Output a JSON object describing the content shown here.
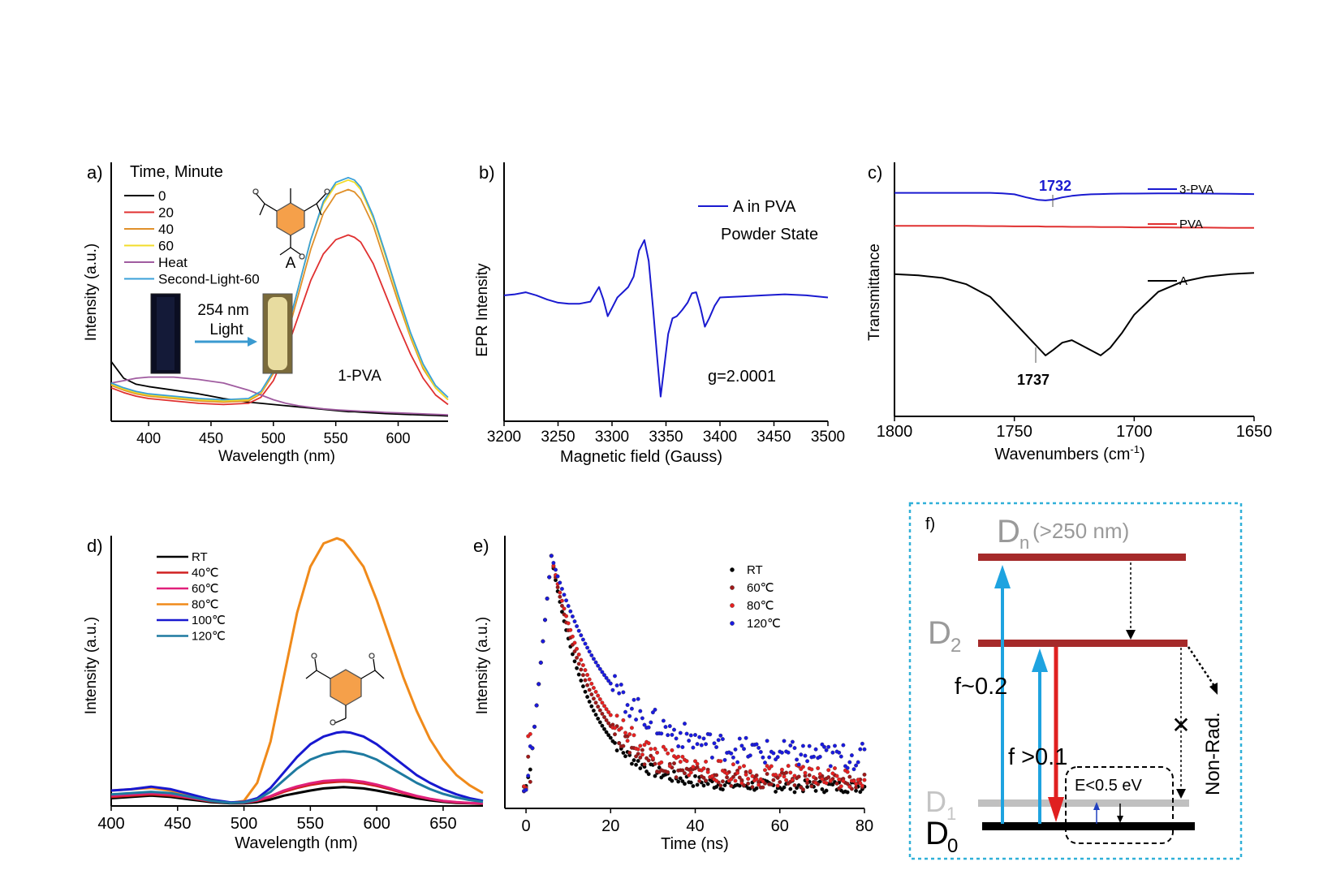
{
  "chart_data": [
    {
      "panel": "a)",
      "type": "line",
      "xlabel": "Wavelength (nm)",
      "ylabel": "Intensity (a.u.)",
      "xlim": [
        370,
        640
      ],
      "ylim": [
        0,
        1.05
      ],
      "xticks": [
        400,
        450,
        500,
        550,
        600
      ],
      "legend_title": "Time, Minute",
      "legend_position": "top-left",
      "annotations": [
        "A",
        "254 nm",
        "Light",
        "1-PVA"
      ],
      "x": [
        370,
        380,
        390,
        400,
        420,
        440,
        460,
        480,
        490,
        500,
        510,
        520,
        530,
        540,
        550,
        560,
        565,
        570,
        580,
        590,
        600,
        610,
        620,
        630,
        640
      ],
      "series": [
        {
          "name": "0",
          "color": "#000000",
          "values": [
            0.25,
            0.18,
            0.155,
            0.145,
            0.13,
            0.115,
            0.095,
            0.08,
            0.075,
            0.07,
            0.065,
            0.06,
            0.055,
            0.05,
            0.045,
            0.04,
            0.04,
            0.038,
            0.035,
            0.032,
            0.03,
            0.028,
            0.026,
            0.024,
            0.022
          ]
        },
        {
          "name": "20",
          "color": "#e03030",
          "values": [
            0.14,
            0.12,
            0.105,
            0.095,
            0.085,
            0.075,
            0.07,
            0.075,
            0.1,
            0.17,
            0.29,
            0.44,
            0.59,
            0.7,
            0.76,
            0.78,
            0.77,
            0.75,
            0.66,
            0.53,
            0.4,
            0.28,
            0.18,
            0.11,
            0.07
          ]
        },
        {
          "name": "40",
          "color": "#e0902a",
          "values": [
            0.15,
            0.13,
            0.115,
            0.105,
            0.095,
            0.085,
            0.08,
            0.085,
            0.115,
            0.2,
            0.34,
            0.53,
            0.72,
            0.87,
            0.95,
            0.97,
            0.96,
            0.93,
            0.82,
            0.66,
            0.5,
            0.35,
            0.22,
            0.14,
            0.09
          ]
        },
        {
          "name": "60",
          "color": "#f2dc2a",
          "values": [
            0.155,
            0.135,
            0.12,
            0.11,
            0.1,
            0.09,
            0.085,
            0.09,
            0.12,
            0.21,
            0.36,
            0.56,
            0.76,
            0.91,
            0.99,
            1.01,
            1.0,
            0.97,
            0.85,
            0.69,
            0.52,
            0.36,
            0.23,
            0.14,
            0.09
          ]
        },
        {
          "name": "Heat",
          "color": "#a05ca0",
          "values": [
            0.16,
            0.17,
            0.18,
            0.185,
            0.185,
            0.175,
            0.16,
            0.13,
            0.11,
            0.09,
            0.075,
            0.065,
            0.058,
            0.052,
            0.048,
            0.045,
            0.044,
            0.042,
            0.04,
            0.037,
            0.035,
            0.033,
            0.031,
            0.029,
            0.027
          ]
        },
        {
          "name": "Second-Light-60",
          "color": "#3aa0d8",
          "values": [
            0.16,
            0.14,
            0.125,
            0.115,
            0.105,
            0.095,
            0.09,
            0.095,
            0.125,
            0.21,
            0.36,
            0.56,
            0.76,
            0.92,
            1.0,
            1.02,
            1.01,
            0.98,
            0.86,
            0.7,
            0.53,
            0.37,
            0.24,
            0.15,
            0.1
          ]
        }
      ]
    },
    {
      "panel": "b)",
      "type": "line",
      "xlabel": "Magnetic field (Gauss)",
      "ylabel": "EPR Intensity",
      "xlim": [
        3200,
        3500
      ],
      "ylim": [
        -1,
        1
      ],
      "xticks": [
        3200,
        3250,
        3300,
        3350,
        3400,
        3450,
        3500
      ],
      "legend_position": "top-right",
      "annotations": [
        "Powder State",
        "g=2.0001"
      ],
      "series": [
        {
          "name": "A in PVA",
          "color": "#1a1ad0",
          "x": [
            3200,
            3210,
            3220,
            3230,
            3240,
            3250,
            3260,
            3270,
            3280,
            3285,
            3288,
            3292,
            3296,
            3300,
            3305,
            3310,
            3315,
            3320,
            3325,
            3330,
            3334,
            3338,
            3342,
            3345,
            3348,
            3352,
            3356,
            3360,
            3365,
            3370,
            3374,
            3378,
            3382,
            3386,
            3390,
            3395,
            3400,
            3420,
            3440,
            3460,
            3480,
            3500
          ],
          "values": [
            0.02,
            0.03,
            0.05,
            0.02,
            -0.02,
            -0.05,
            -0.06,
            -0.06,
            -0.04,
            0.05,
            0.1,
            -0.02,
            -0.18,
            -0.1,
            0.0,
            0.05,
            0.1,
            0.2,
            0.45,
            0.55,
            0.35,
            -0.1,
            -0.6,
            -0.95,
            -0.7,
            -0.35,
            -0.2,
            -0.18,
            -0.12,
            -0.05,
            0.04,
            0.05,
            -0.1,
            -0.28,
            -0.2,
            -0.08,
            0.0,
            0.01,
            0.02,
            0.03,
            0.02,
            0.0
          ]
        }
      ]
    },
    {
      "panel": "c)",
      "type": "line",
      "xlabel": "Wavenumbers (cm-1)",
      "ylabel": "Transmittance",
      "xlim": [
        1800,
        1650
      ],
      "ylim": [
        0,
        1
      ],
      "xticks": [
        1800,
        1750,
        1700,
        1650
      ],
      "legend_position": "right",
      "annotations": [
        "1732",
        "1737"
      ],
      "x": [
        1800,
        1790,
        1780,
        1770,
        1760,
        1755,
        1750,
        1745,
        1740,
        1737,
        1734,
        1730,
        1726,
        1722,
        1718,
        1714,
        1710,
        1705,
        1700,
        1690,
        1680,
        1670,
        1660,
        1650
      ],
      "series": [
        {
          "name": "3-PVA",
          "color": "#1a1ad0",
          "values": [
            0.88,
            0.88,
            0.88,
            0.88,
            0.88,
            0.878,
            0.874,
            0.862,
            0.852,
            0.85,
            0.853,
            0.862,
            0.868,
            0.872,
            0.874,
            0.875,
            0.876,
            0.877,
            0.877,
            0.878,
            0.878,
            0.877,
            0.876,
            0.875
          ]
        },
        {
          "name": "PVA",
          "color": "#e03030",
          "values": [
            0.75,
            0.75,
            0.75,
            0.75,
            0.749,
            0.749,
            0.748,
            0.748,
            0.748,
            0.747,
            0.747,
            0.747,
            0.746,
            0.746,
            0.746,
            0.745,
            0.745,
            0.745,
            0.744,
            0.744,
            0.743,
            0.743,
            0.742,
            0.742
          ]
        },
        {
          "name": "A",
          "color": "#000000",
          "values": [
            0.56,
            0.555,
            0.545,
            0.52,
            0.47,
            0.42,
            0.37,
            0.32,
            0.27,
            0.24,
            0.26,
            0.29,
            0.3,
            0.28,
            0.26,
            0.24,
            0.27,
            0.33,
            0.4,
            0.49,
            0.53,
            0.55,
            0.56,
            0.565
          ]
        }
      ]
    },
    {
      "panel": "d)",
      "type": "line",
      "xlabel": "Wavelength (nm)",
      "ylabel": "Intensity (a.u.)",
      "xlim": [
        400,
        680
      ],
      "ylim": [
        0,
        1.05
      ],
      "xticks": [
        400,
        450,
        500,
        550,
        600,
        650
      ],
      "legend_position": "top-left",
      "x": [
        400,
        415,
        430,
        445,
        460,
        475,
        490,
        500,
        510,
        520,
        530,
        540,
        550,
        560,
        570,
        575,
        580,
        590,
        600,
        610,
        620,
        630,
        640,
        650,
        660,
        670,
        680
      ],
      "series": [
        {
          "name": "RT",
          "color": "#000000",
          "values": [
            0.03,
            0.035,
            0.04,
            0.035,
            0.025,
            0.015,
            0.01,
            0.01,
            0.015,
            0.025,
            0.04,
            0.05,
            0.06,
            0.068,
            0.072,
            0.073,
            0.072,
            0.068,
            0.06,
            0.05,
            0.04,
            0.03,
            0.022,
            0.016,
            0.012,
            0.01,
            0.008
          ]
        },
        {
          "name": "40℃",
          "color": "#d02020",
          "values": [
            0.035,
            0.04,
            0.045,
            0.04,
            0.03,
            0.018,
            0.012,
            0.012,
            0.02,
            0.035,
            0.055,
            0.07,
            0.082,
            0.09,
            0.094,
            0.095,
            0.094,
            0.088,
            0.078,
            0.065,
            0.05,
            0.037,
            0.027,
            0.019,
            0.014,
            0.011,
            0.009
          ]
        },
        {
          "name": "60℃",
          "color": "#e0207a",
          "values": [
            0.04,
            0.045,
            0.05,
            0.045,
            0.032,
            0.02,
            0.013,
            0.013,
            0.022,
            0.038,
            0.06,
            0.076,
            0.088,
            0.097,
            0.1,
            0.101,
            0.1,
            0.094,
            0.083,
            0.069,
            0.053,
            0.039,
            0.028,
            0.02,
            0.015,
            0.012,
            0.01
          ]
        },
        {
          "name": "80℃",
          "color": "#f08a1a",
          "values": [
            0.06,
            0.065,
            0.07,
            0.06,
            0.04,
            0.022,
            0.012,
            0.02,
            0.09,
            0.25,
            0.5,
            0.75,
            0.93,
            1.02,
            1.04,
            1.03,
            1.0,
            0.93,
            0.8,
            0.65,
            0.5,
            0.37,
            0.26,
            0.18,
            0.12,
            0.08,
            0.05
          ]
        },
        {
          "name": "100℃",
          "color": "#1818d0",
          "values": [
            0.06,
            0.065,
            0.075,
            0.065,
            0.045,
            0.025,
            0.014,
            0.016,
            0.03,
            0.07,
            0.13,
            0.19,
            0.24,
            0.27,
            0.285,
            0.288,
            0.285,
            0.27,
            0.24,
            0.2,
            0.16,
            0.12,
            0.09,
            0.065,
            0.045,
            0.03,
            0.02
          ]
        },
        {
          "name": "120℃",
          "color": "#1e7aa0",
          "values": [
            0.045,
            0.05,
            0.055,
            0.05,
            0.035,
            0.02,
            0.012,
            0.014,
            0.025,
            0.055,
            0.1,
            0.145,
            0.18,
            0.2,
            0.21,
            0.212,
            0.21,
            0.2,
            0.18,
            0.15,
            0.12,
            0.09,
            0.066,
            0.047,
            0.033,
            0.023,
            0.016
          ]
        }
      ]
    },
    {
      "panel": "e)",
      "type": "scatter",
      "xlabel": "Time (ns)",
      "ylabel": "Intensity (a.u.)",
      "xlim": [
        -5,
        80
      ],
      "ylim": [
        0,
        1.05
      ],
      "xticks": [
        0,
        20,
        40,
        60,
        80
      ],
      "legend_position": "top-right",
      "series": [
        {
          "name": "RT",
          "color": "#000000",
          "tau": 9,
          "floor": 0.04
        },
        {
          "name": "60℃",
          "color": "#a01818",
          "tau": 10,
          "floor": 0.06
        },
        {
          "name": "80℃",
          "color": "#e82020",
          "tau": 11,
          "floor": 0.08
        },
        {
          "name": "120℃",
          "color": "#1a1ae0",
          "tau": 14,
          "floor": 0.16
        }
      ]
    }
  ],
  "diagram_f": {
    "panel": "f)",
    "levels": {
      "dn": "D",
      "dn_sub": "n",
      "dn_note": "(>250 nm)",
      "d2": "D",
      "d2_sub": "2",
      "d1": "D",
      "d1_sub": "1",
      "d0": "D",
      "d0_sub": "0"
    },
    "labels": {
      "f1": "f~0.2",
      "f2": "f >0.1",
      "energy_gap": "E<0.5 eV",
      "nonrad": "Non-Rad.",
      "forbidden": "✕"
    },
    "colors": {
      "level_upper": "#a52a2a",
      "level_d1": "#c0c0c0",
      "level_d0": "#000000",
      "absorption": "#1ea3e0",
      "emission": "#e02020",
      "border": "#30b0d8"
    }
  },
  "molecule_labels": {
    "a": "A"
  }
}
